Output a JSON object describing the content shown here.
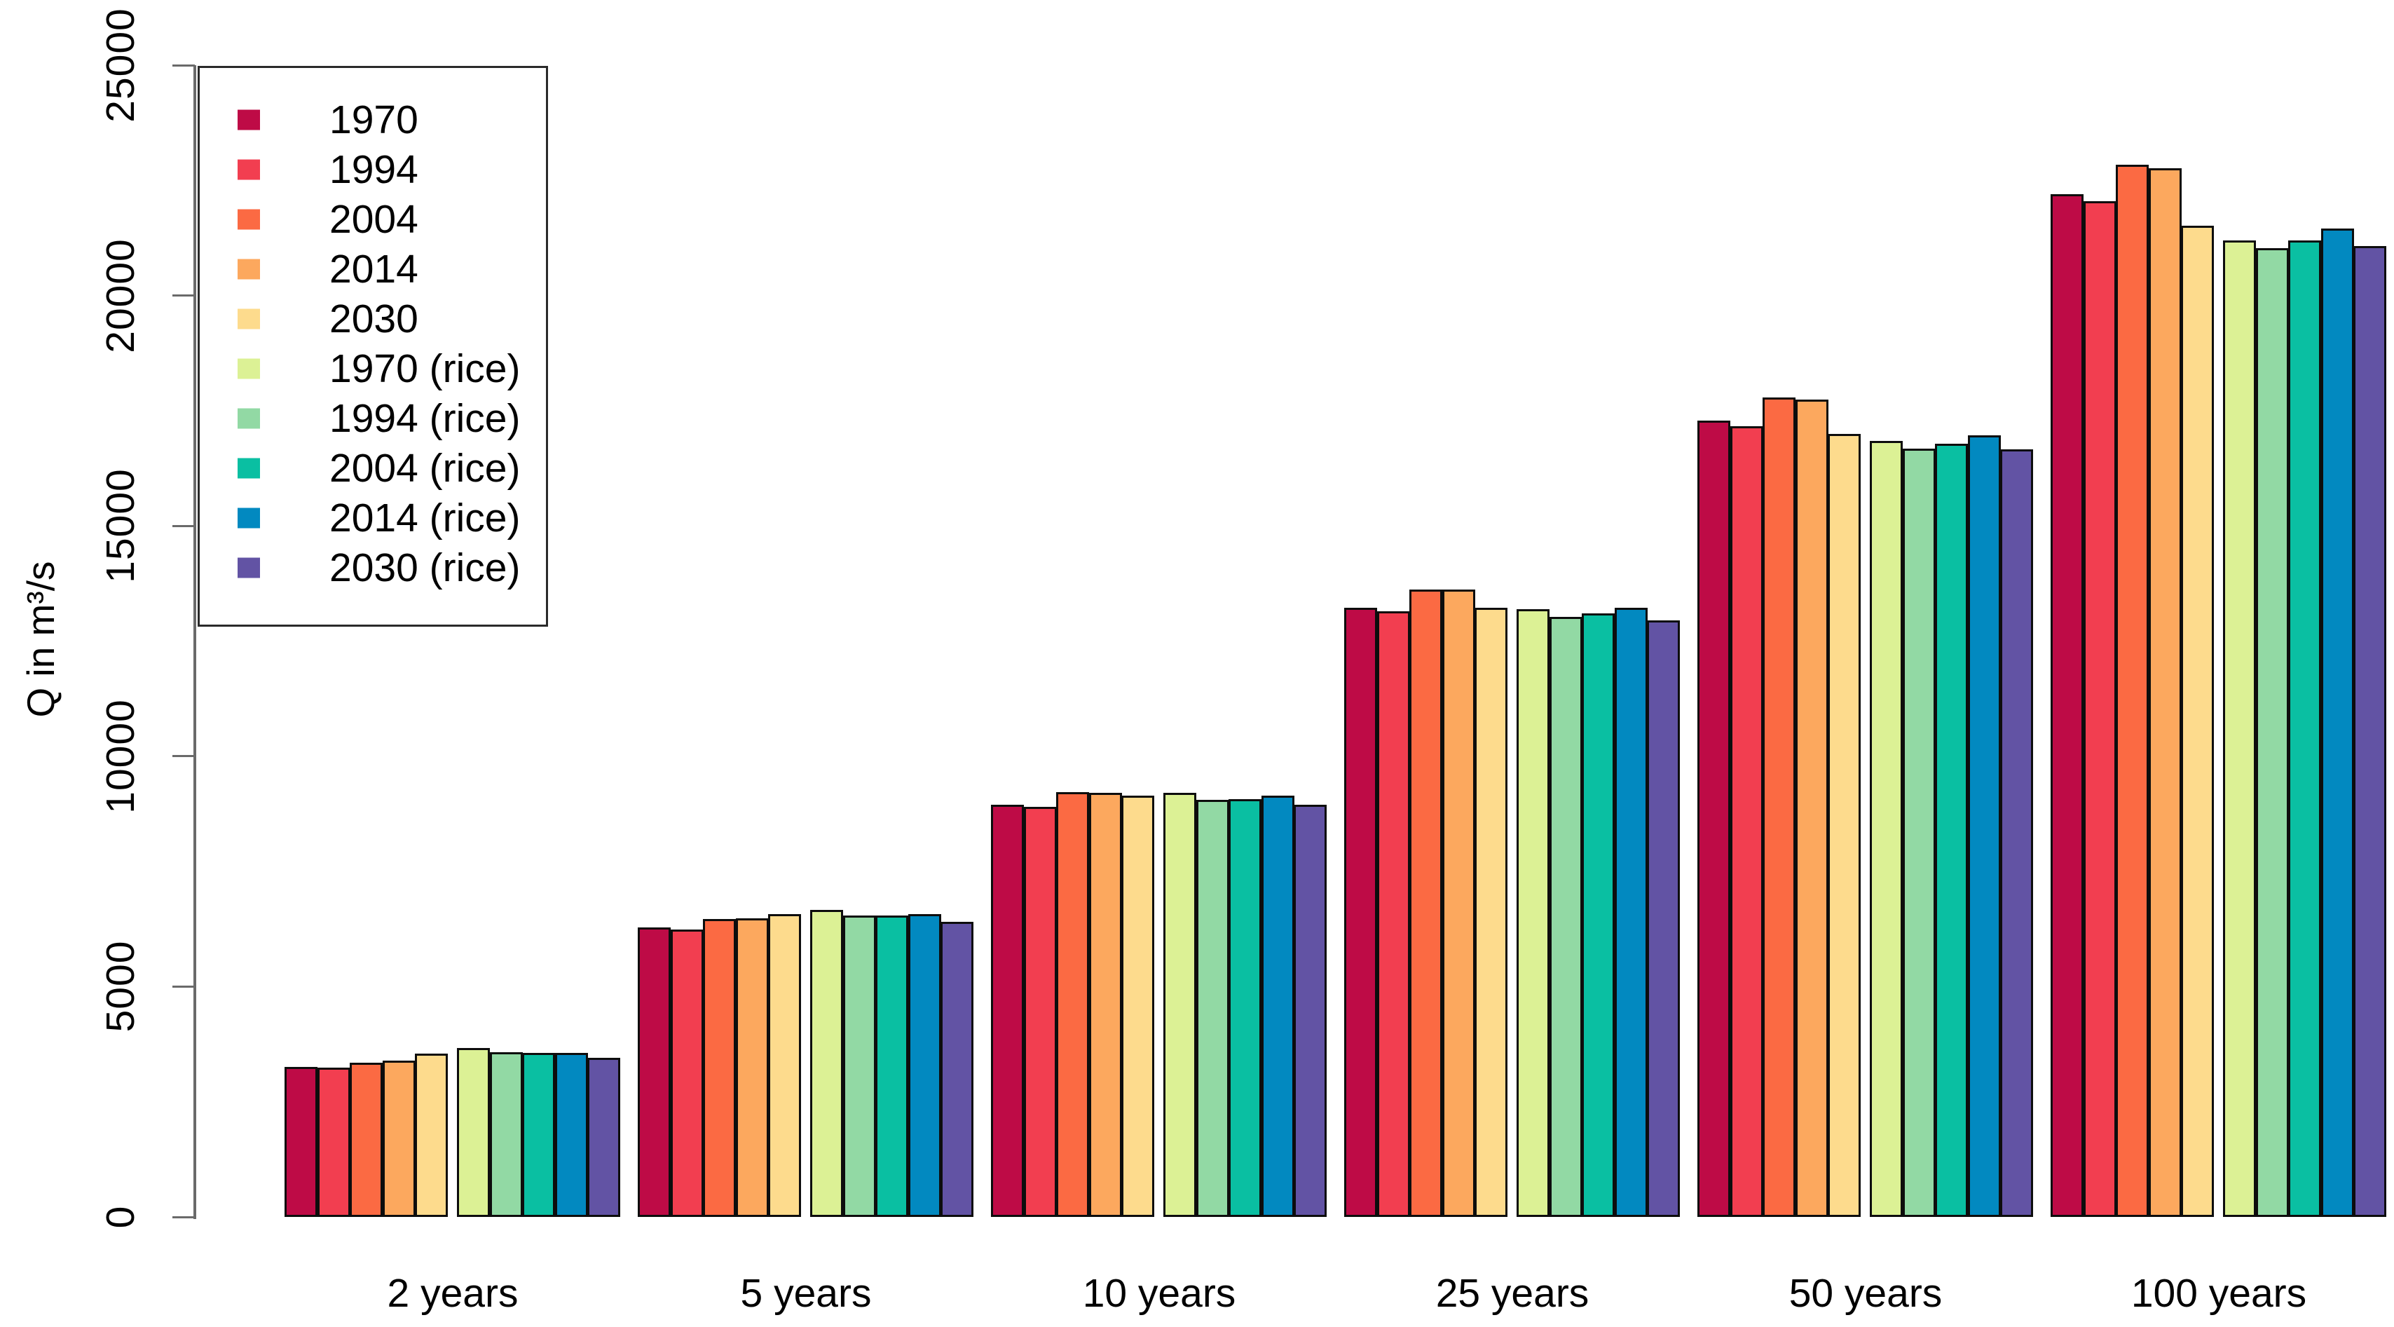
{
  "chart_data": {
    "type": "bar",
    "title": "",
    "xlabel": "",
    "ylabel": "Q in m³/s",
    "ylim": [
      0,
      25000
    ],
    "yticks": [
      0,
      5000,
      10000,
      15000,
      20000,
      25000
    ],
    "grid": false,
    "legend_position": "top-left",
    "categories": [
      "2 years",
      "5 years",
      "10 years",
      "25 years",
      "50 years",
      "100 years"
    ],
    "series": [
      {
        "name": "1970",
        "color": "#BE0B46",
        "values": [
          3250,
          6280,
          8950,
          13220,
          17290,
          22200
        ]
      },
      {
        "name": "1994",
        "color": "#F23E50",
        "values": [
          3240,
          6240,
          8900,
          13150,
          17160,
          22050
        ]
      },
      {
        "name": "2004",
        "color": "#FB6A43",
        "values": [
          3340,
          6470,
          9220,
          13620,
          17780,
          22840
        ]
      },
      {
        "name": "2014",
        "color": "#FCA85E",
        "values": [
          3390,
          6480,
          9210,
          13620,
          17740,
          22770
        ]
      },
      {
        "name": "2030",
        "color": "#FDDB8D",
        "values": [
          3550,
          6580,
          9150,
          13230,
          17000,
          21520
        ]
      },
      {
        "name": "1970 (rice)",
        "color": "#DCF195",
        "values": [
          3660,
          6660,
          9200,
          13190,
          16840,
          21190
        ]
      },
      {
        "name": "1994 (rice)",
        "color": "#92D9A4",
        "values": [
          3580,
          6540,
          9060,
          13030,
          16680,
          21030
        ]
      },
      {
        "name": "2004 (rice)",
        "color": "#0ABFA2",
        "values": [
          3560,
          6540,
          9070,
          13100,
          16790,
          21190
        ]
      },
      {
        "name": "2014 (rice)",
        "color": "#0289C0",
        "values": [
          3560,
          6580,
          9150,
          13230,
          16970,
          21450
        ]
      },
      {
        "name": "2030 (rice)",
        "color": "#6253A4",
        "values": [
          3460,
          6410,
          8940,
          12950,
          16660,
          21080
        ]
      }
    ],
    "colors": {
      "axis": "#6a6a6a",
      "bar_border": "#0d0d0d",
      "legend_border": "#2a2a2a",
      "text": "#000000",
      "background": "#ffffff"
    }
  }
}
